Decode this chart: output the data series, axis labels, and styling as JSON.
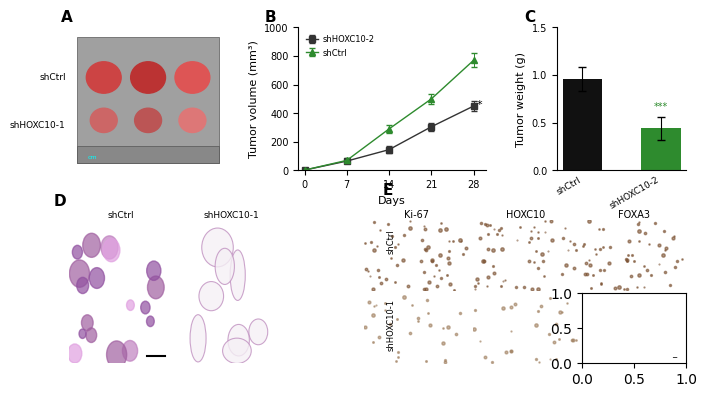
{
  "panel_labels": [
    "A",
    "B",
    "C",
    "D",
    "E"
  ],
  "panel_label_fontsize": 11,
  "panel_label_fontweight": "bold",
  "tumor_photo_labels": [
    "shCtrl",
    "shHOXC10-1"
  ],
  "tumor_photo_bg": "#d0d0d0",
  "line_days": [
    0,
    7,
    14,
    21,
    28
  ],
  "shHOXC10_mean": [
    2,
    65,
    145,
    305,
    450
  ],
  "shHOXC10_err": [
    2,
    15,
    25,
    30,
    35
  ],
  "shCtrl_mean": [
    2,
    70,
    290,
    500,
    770
  ],
  "shCtrl_err": [
    2,
    20,
    30,
    35,
    50
  ],
  "line_xlabel": "Days",
  "line_ylabel": "Tumor volume (mm³)",
  "line_ylim": [
    0,
    1000
  ],
  "line_yticks": [
    0,
    200,
    400,
    600,
    800,
    1000
  ],
  "line_xticks": [
    0,
    7,
    14,
    21,
    28
  ],
  "shHOXC10_color": "#333333",
  "shCtrl_color": "#2e8b2e",
  "line_legend_shHOXC10": "shHOXC10-2",
  "line_legend_shCtrl": "shCtrl",
  "significance_text": "*",
  "bar_categories": [
    "shCtrl",
    "shHOXC10-2"
  ],
  "bar_values": [
    0.96,
    0.44
  ],
  "bar_errors": [
    0.13,
    0.12
  ],
  "bar_colors": [
    "#111111",
    "#2e8b2e"
  ],
  "bar_ylabel": "Tumor weight (g)",
  "bar_ylim": [
    0,
    1.5
  ],
  "bar_yticks": [
    0.0,
    0.5,
    1.0,
    1.5
  ],
  "bar_significance": "***",
  "ihc_columns": [
    "Ki-67",
    "HOXC10",
    "FOXA3"
  ],
  "ihc_rows": [
    "shCtrl",
    "shHOXC10-1"
  ],
  "ihc_bg_top": "#c8a882",
  "ihc_bg_bottom": "#d4c0a0",
  "hne_labels": [
    "shCtrl",
    "shHOXC10-1"
  ],
  "hne_bg_left": "#c8a0c8",
  "hne_bg_right": "#e8d8f0",
  "background_color": "#ffffff",
  "text_color": "#000000",
  "axis_linewidth": 0.8,
  "tick_fontsize": 7,
  "label_fontsize": 8
}
